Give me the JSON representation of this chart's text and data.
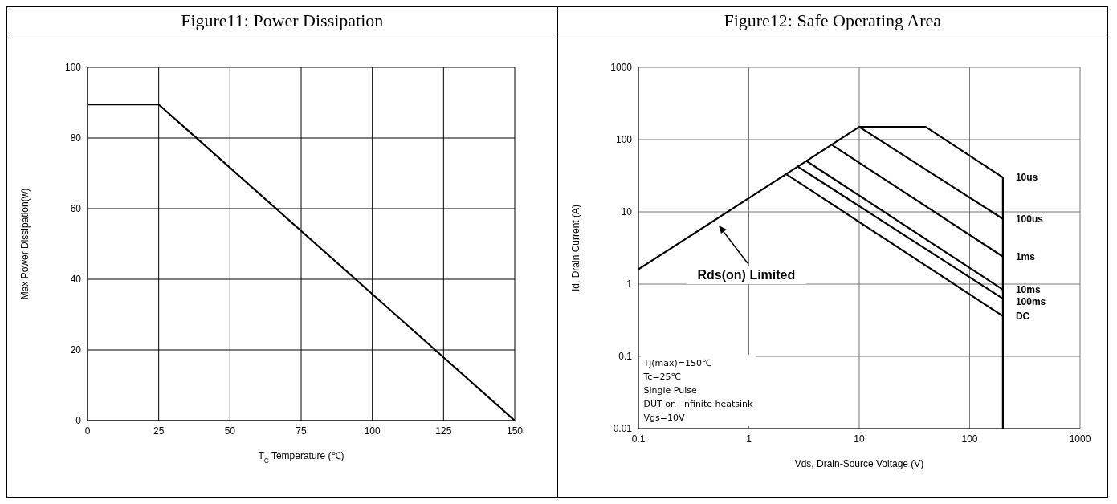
{
  "chart_data": [
    {
      "type": "line",
      "title": "Figure11: Power Dissipation",
      "xlabel": "T$_{C}$ Temperature (℃)",
      "ylabel": "Max Power Dissipation(w)",
      "xlim": [
        0,
        150
      ],
      "xticks": [
        0,
        25,
        50,
        75,
        100,
        125,
        150
      ],
      "ylim": [
        0,
        100
      ],
      "yticks": [
        0,
        20,
        40,
        60,
        80,
        100
      ],
      "grid": true,
      "series": [
        {
          "color": "#000000",
          "x": [
            0,
            25,
            150
          ],
          "values": [
            89.5,
            89.5,
            0
          ]
        }
      ]
    },
    {
      "type": "line",
      "title": "Figure12: Safe Operating Area",
      "xlabel": "Vds, Drain-Source Voltage (V)",
      "ylabel": "Id, Drain Current (A)",
      "log": "xy",
      "xlim": [
        0.1,
        1000
      ],
      "xticks": [
        0.1,
        1,
        10,
        100,
        1000
      ],
      "ylim": [
        0.01,
        1000
      ],
      "yticks": [
        0.01,
        0.1,
        1,
        10,
        100,
        1000
      ],
      "grid": true,
      "annotations": [
        "Rds(on) Limited",
        "Tj(max)=150℃",
        "Tc=25℃",
        "Single Pulse",
        "DUT on  infinite heatsink",
        "Vgs=10V"
      ],
      "series": [
        {
          "name": "10us",
          "color": "#000000",
          "x": [
            0.1,
            10,
            40,
            200
          ],
          "values": [
            1.6,
            150,
            150,
            30
          ]
        },
        {
          "name": "100us",
          "color": "#000000",
          "x": [
            10,
            200
          ],
          "values": [
            150,
            8
          ]
        },
        {
          "name": "1ms",
          "color": "#000000",
          "x": [
            5.7,
            200
          ],
          "values": [
            84,
            2.4
          ]
        },
        {
          "name": "10ms",
          "color": "#000000",
          "x": [
            3.3,
            200
          ],
          "values": [
            51,
            0.84
          ]
        },
        {
          "name": "100ms",
          "color": "#000000",
          "x": [
            2.8,
            200
          ],
          "values": [
            42,
            0.63
          ]
        },
        {
          "name": "DC",
          "color": "#000000",
          "x": [
            2.2,
            200
          ],
          "values": [
            33,
            0.36
          ]
        },
        {
          "color": "#000000",
          "x": [
            200,
            200
          ],
          "values": [
            30,
            0.01
          ]
        }
      ]
    }
  ]
}
